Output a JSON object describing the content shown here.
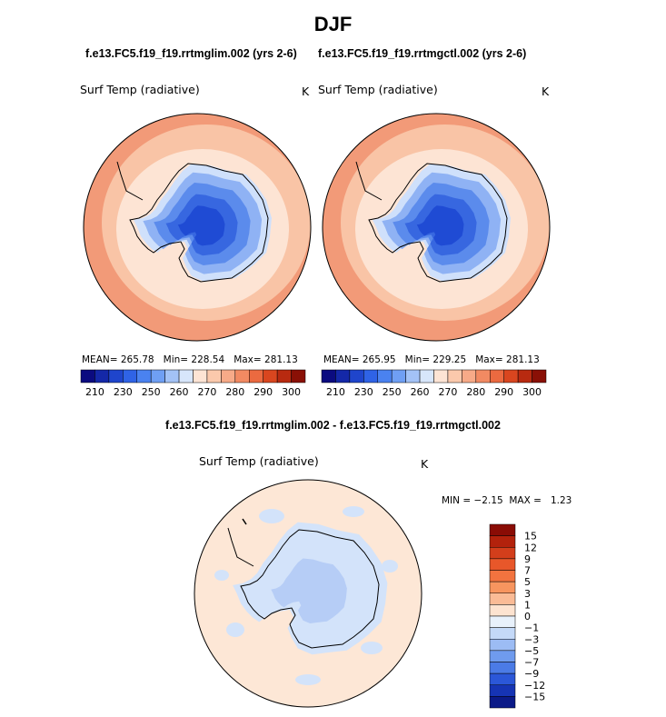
{
  "title": "DJF",
  "panels": [
    {
      "case": "f.e13.FC5.f19_f19.rrtmglim.002 (yrs 2-6)",
      "variable": "Surf Temp (radiative)",
      "units": "K",
      "mean_label": "MEAN=",
      "mean": "265.78",
      "min_label": "Min=",
      "min": "228.54",
      "max_label": "Max=",
      "max": "281.13"
    },
    {
      "case": "f.e13.FC5.f19_f19.rrtmgctl.002 (yrs 2-6)",
      "variable": "Surf Temp (radiative)",
      "units": "K",
      "mean_label": "MEAN=",
      "mean": "265.95",
      "min_label": "Min=",
      "min": "229.25",
      "max_label": "Max=",
      "max": "281.13"
    }
  ],
  "abs_colorbar": {
    "labels": [
      "210",
      "230",
      "250",
      "260",
      "270",
      "280",
      "290",
      "300"
    ],
    "colors": [
      "#0b0b80",
      "#1428a8",
      "#1f45cc",
      "#2f63e6",
      "#4a82f0",
      "#6f9ff4",
      "#a3c2f6",
      "#d7e6fb",
      "#fde4d4",
      "#fbc9ac",
      "#f7aa88",
      "#f28a62",
      "#eb6a40",
      "#d9461f",
      "#b82a10",
      "#8a1006"
    ]
  },
  "difference": {
    "title": "f.e13.FC5.f19_f19.rrtmglim.002 - f.e13.FC5.f19_f19.rrtmgctl.002",
    "variable": "Surf Temp (radiative)",
    "units": "K",
    "min_label": "MIN =",
    "min": "−2.15",
    "max_label": "MAX =",
    "max": "1.23",
    "colorbar_labels": [
      "15",
      "12",
      "9",
      "7",
      "5",
      "3",
      "1",
      "0",
      "−1",
      "−3",
      "−5",
      "−7",
      "−9",
      "−12",
      "−15"
    ],
    "colorbar_colors": [
      "#8a0c05",
      "#b3220c",
      "#d33e1b",
      "#e8572a",
      "#f2733f",
      "#f7955f",
      "#fabb96",
      "#fde3d0",
      "#e8f1fb",
      "#c4d9f8",
      "#9cbcf4",
      "#6f9bee",
      "#4b7be6",
      "#2b57d8",
      "#1634b4",
      "#0b1a88"
    ]
  },
  "map_colors": {
    "warm_outer": "#f29a78",
    "warm_mid": "#f9c4a6",
    "warm_inner": "#fde4d4",
    "cold_edge": "#cfe0fb",
    "cold_1": "#8fb2f4",
    "cold_2": "#5b8bec",
    "cold_3": "#3767e0",
    "cold_4": "#1f4bd4",
    "diff_bg": "#fde7d6",
    "diff_neg": "#d3e3fa",
    "diff_neg2": "#b6cdf6"
  }
}
